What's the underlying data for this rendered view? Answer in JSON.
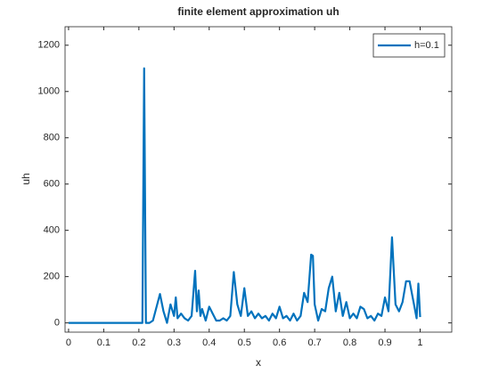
{
  "chart_data": {
    "type": "line",
    "title": "finite element approximation uh",
    "xlabel": "x",
    "ylabel": "uh",
    "x": [
      0,
      0.05,
      0.1,
      0.15,
      0.2,
      0.21,
      0.215,
      0.22,
      0.23,
      0.24,
      0.26,
      0.27,
      0.28,
      0.29,
      0.3,
      0.305,
      0.31,
      0.32,
      0.33,
      0.34,
      0.35,
      0.36,
      0.365,
      0.37,
      0.375,
      0.38,
      0.39,
      0.4,
      0.41,
      0.42,
      0.43,
      0.44,
      0.45,
      0.46,
      0.47,
      0.48,
      0.49,
      0.5,
      0.51,
      0.52,
      0.53,
      0.54,
      0.55,
      0.56,
      0.57,
      0.58,
      0.59,
      0.6,
      0.61,
      0.62,
      0.63,
      0.64,
      0.65,
      0.66,
      0.67,
      0.68,
      0.69,
      0.695,
      0.7,
      0.71,
      0.72,
      0.73,
      0.74,
      0.75,
      0.76,
      0.77,
      0.78,
      0.79,
      0.8,
      0.81,
      0.82,
      0.83,
      0.84,
      0.85,
      0.86,
      0.87,
      0.88,
      0.89,
      0.9,
      0.91,
      0.92,
      0.93,
      0.94,
      0.95,
      0.96,
      0.97,
      0.98,
      0.99,
      0.995,
      1.0
    ],
    "series": [
      {
        "name": "h=0.1",
        "color": "#0072bd",
        "values": [
          0,
          0,
          0,
          0,
          0,
          0,
          1100,
          0,
          0,
          10,
          125,
          50,
          0,
          80,
          30,
          110,
          20,
          40,
          20,
          10,
          30,
          225,
          50,
          140,
          30,
          60,
          10,
          70,
          40,
          10,
          10,
          20,
          10,
          30,
          220,
          80,
          30,
          150,
          30,
          50,
          20,
          40,
          20,
          30,
          10,
          40,
          20,
          70,
          20,
          30,
          10,
          40,
          10,
          30,
          130,
          90,
          295,
          290,
          80,
          10,
          60,
          50,
          150,
          200,
          50,
          130,
          30,
          90,
          20,
          40,
          20,
          70,
          60,
          20,
          30,
          10,
          40,
          30,
          110,
          50,
          370,
          80,
          50,
          90,
          180,
          180,
          100,
          20,
          170,
          25
        ]
      }
    ],
    "xlim": [
      -0.01,
      1.09
    ],
    "ylim": [
      -40,
      1280
    ],
    "xticks": [
      0,
      0.1,
      0.2,
      0.3,
      0.4,
      0.5,
      0.6,
      0.7,
      0.8,
      0.9,
      1
    ],
    "yticks": [
      0,
      200,
      400,
      600,
      800,
      1000,
      1200
    ],
    "grid": false,
    "legend": "northeast"
  }
}
